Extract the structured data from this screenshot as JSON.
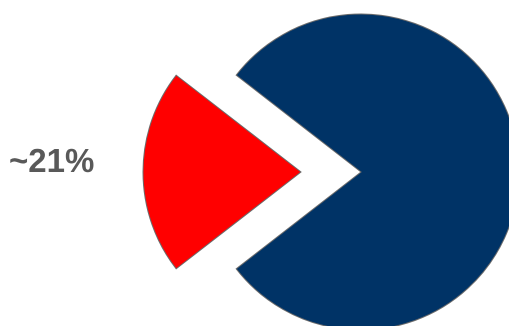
{
  "chart_data": {
    "type": "pie",
    "title": "",
    "slices": [
      {
        "value": 79,
        "color": "#003366",
        "exploded": false,
        "label": ""
      },
      {
        "value": 21,
        "color": "#ff0000",
        "exploded": true,
        "label": "~21%"
      }
    ]
  }
}
